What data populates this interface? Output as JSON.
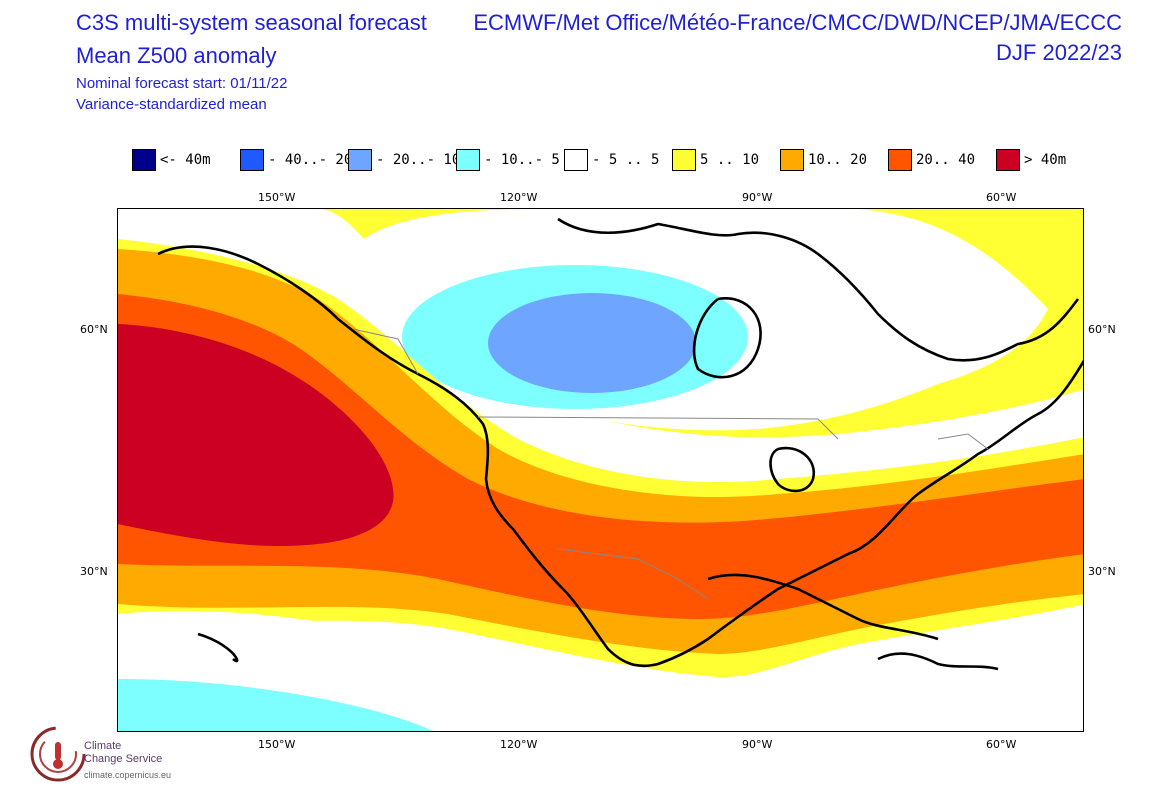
{
  "header": {
    "title_line1": "C3S multi-system seasonal forecast",
    "title_line2": "Mean Z500 anomaly",
    "start_line": "Nominal forecast start: 01/11/22",
    "method_line": "Variance-standardized mean",
    "systems": "ECMWF/Met Office/Météo-France/CMCC/DWD/NCEP/JMA/ECCC",
    "season": "DJF 2022/23"
  },
  "legend": [
    {
      "label": "<- 40m",
      "color": "#00008b"
    },
    {
      "label": "- 40..- 20",
      "color": "#1e5aff"
    },
    {
      "label": "- 20..- 10",
      "color": "#6ea6ff"
    },
    {
      "label": "- 10..- 5",
      "color": "#7dffff"
    },
    {
      "label": "- 5 .. 5",
      "color": "#ffffff"
    },
    {
      "label": "5 .. 10",
      "color": "#ffff33"
    },
    {
      "label": "10.. 20",
      "color": "#ffaa00"
    },
    {
      "label": "20.. 40",
      "color": "#ff5500"
    },
    {
      "label": "> 40m",
      "color": "#cc0022"
    }
  ],
  "axes": {
    "lon_labels": [
      "150°W",
      "120°W",
      "90°W",
      "60°W"
    ],
    "lat_labels": [
      "60°N",
      "30°N"
    ]
  },
  "logo": {
    "line1": "Climate",
    "line2": "Change Service",
    "url": "climate.copernicus.eu"
  }
}
